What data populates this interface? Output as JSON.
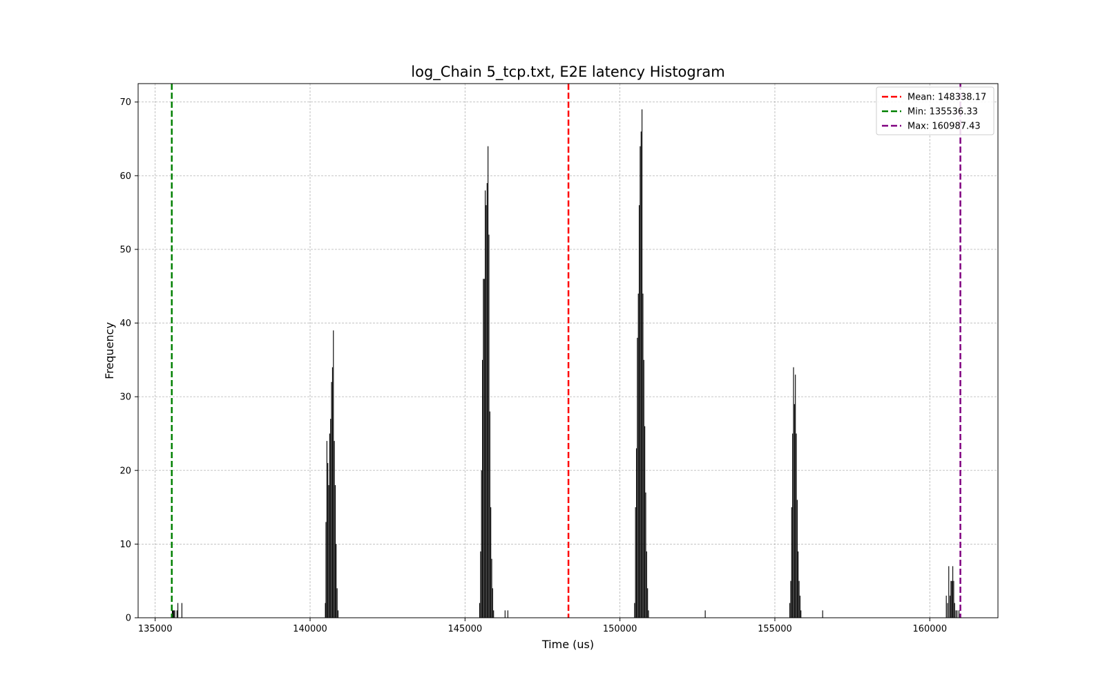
{
  "chart_data": {
    "type": "bar",
    "title": "log_Chain 5_tcp.txt, E2E latency Histogram",
    "xlabel": "Time (us)",
    "ylabel": "Frequency",
    "xlim": [
      134450,
      162200
    ],
    "ylim": [
      0,
      72.5
    ],
    "xticks": [
      135000,
      140000,
      145000,
      150000,
      155000,
      160000
    ],
    "yticks": [
      0,
      10,
      20,
      30,
      40,
      50,
      60,
      70
    ],
    "grid": true,
    "bar_color": "#000000",
    "bin_width": 25,
    "bins": [
      {
        "x": 135540,
        "count": 1
      },
      {
        "x": 135565,
        "count": 1
      },
      {
        "x": 135590,
        "count": 1
      },
      {
        "x": 135620,
        "count": 1
      },
      {
        "x": 135690,
        "count": 1
      },
      {
        "x": 135720,
        "count": 2
      },
      {
        "x": 135850,
        "count": 2
      },
      {
        "x": 140480,
        "count": 2
      },
      {
        "x": 140500,
        "count": 13
      },
      {
        "x": 140530,
        "count": 24
      },
      {
        "x": 140560,
        "count": 21
      },
      {
        "x": 140590,
        "count": 18
      },
      {
        "x": 140620,
        "count": 25
      },
      {
        "x": 140650,
        "count": 27
      },
      {
        "x": 140680,
        "count": 32
      },
      {
        "x": 140710,
        "count": 34
      },
      {
        "x": 140740,
        "count": 39
      },
      {
        "x": 140770,
        "count": 24
      },
      {
        "x": 140800,
        "count": 18
      },
      {
        "x": 140830,
        "count": 10
      },
      {
        "x": 140860,
        "count": 4
      },
      {
        "x": 140890,
        "count": 1
      },
      {
        "x": 145460,
        "count": 2
      },
      {
        "x": 145490,
        "count": 9
      },
      {
        "x": 145520,
        "count": 20
      },
      {
        "x": 145550,
        "count": 35
      },
      {
        "x": 145580,
        "count": 46
      },
      {
        "x": 145610,
        "count": 46
      },
      {
        "x": 145640,
        "count": 58
      },
      {
        "x": 145670,
        "count": 56
      },
      {
        "x": 145700,
        "count": 59
      },
      {
        "x": 145730,
        "count": 64
      },
      {
        "x": 145760,
        "count": 52
      },
      {
        "x": 145790,
        "count": 28
      },
      {
        "x": 145820,
        "count": 15
      },
      {
        "x": 145850,
        "count": 8
      },
      {
        "x": 145880,
        "count": 4
      },
      {
        "x": 145910,
        "count": 1
      },
      {
        "x": 146280,
        "count": 1
      },
      {
        "x": 146370,
        "count": 1
      },
      {
        "x": 150460,
        "count": 2
      },
      {
        "x": 150490,
        "count": 15
      },
      {
        "x": 150520,
        "count": 23
      },
      {
        "x": 150550,
        "count": 38
      },
      {
        "x": 150580,
        "count": 44
      },
      {
        "x": 150610,
        "count": 56
      },
      {
        "x": 150640,
        "count": 64
      },
      {
        "x": 150670,
        "count": 66
      },
      {
        "x": 150700,
        "count": 69
      },
      {
        "x": 150730,
        "count": 44
      },
      {
        "x": 150760,
        "count": 35
      },
      {
        "x": 150790,
        "count": 26
      },
      {
        "x": 150820,
        "count": 17
      },
      {
        "x": 150850,
        "count": 9
      },
      {
        "x": 150880,
        "count": 4
      },
      {
        "x": 150910,
        "count": 1
      },
      {
        "x": 152740,
        "count": 1
      },
      {
        "x": 155470,
        "count": 2
      },
      {
        "x": 155500,
        "count": 5
      },
      {
        "x": 155530,
        "count": 15
      },
      {
        "x": 155560,
        "count": 25
      },
      {
        "x": 155590,
        "count": 34
      },
      {
        "x": 155620,
        "count": 29
      },
      {
        "x": 155650,
        "count": 33
      },
      {
        "x": 155680,
        "count": 25
      },
      {
        "x": 155710,
        "count": 16
      },
      {
        "x": 155740,
        "count": 9
      },
      {
        "x": 155770,
        "count": 5
      },
      {
        "x": 155800,
        "count": 3
      },
      {
        "x": 155830,
        "count": 1
      },
      {
        "x": 156530,
        "count": 1
      },
      {
        "x": 160520,
        "count": 3
      },
      {
        "x": 160560,
        "count": 2
      },
      {
        "x": 160600,
        "count": 7
      },
      {
        "x": 160640,
        "count": 3
      },
      {
        "x": 160670,
        "count": 5
      },
      {
        "x": 160700,
        "count": 5
      },
      {
        "x": 160730,
        "count": 7
      },
      {
        "x": 160760,
        "count": 5
      },
      {
        "x": 160790,
        "count": 2
      },
      {
        "x": 160830,
        "count": 1
      },
      {
        "x": 160870,
        "count": 1
      },
      {
        "x": 160930,
        "count": 1
      }
    ],
    "reference_lines": [
      {
        "name": "Mean",
        "label": "Mean: 148338.17",
        "x": 148338.17,
        "color": "#ff0000"
      },
      {
        "name": "Min",
        "label": "Min: 135536.33",
        "x": 135536.33,
        "color": "#008000"
      },
      {
        "name": "Max",
        "label": "Max: 160987.43",
        "x": 160987.43,
        "color": "#800080"
      }
    ],
    "legend_position": "top-right"
  }
}
